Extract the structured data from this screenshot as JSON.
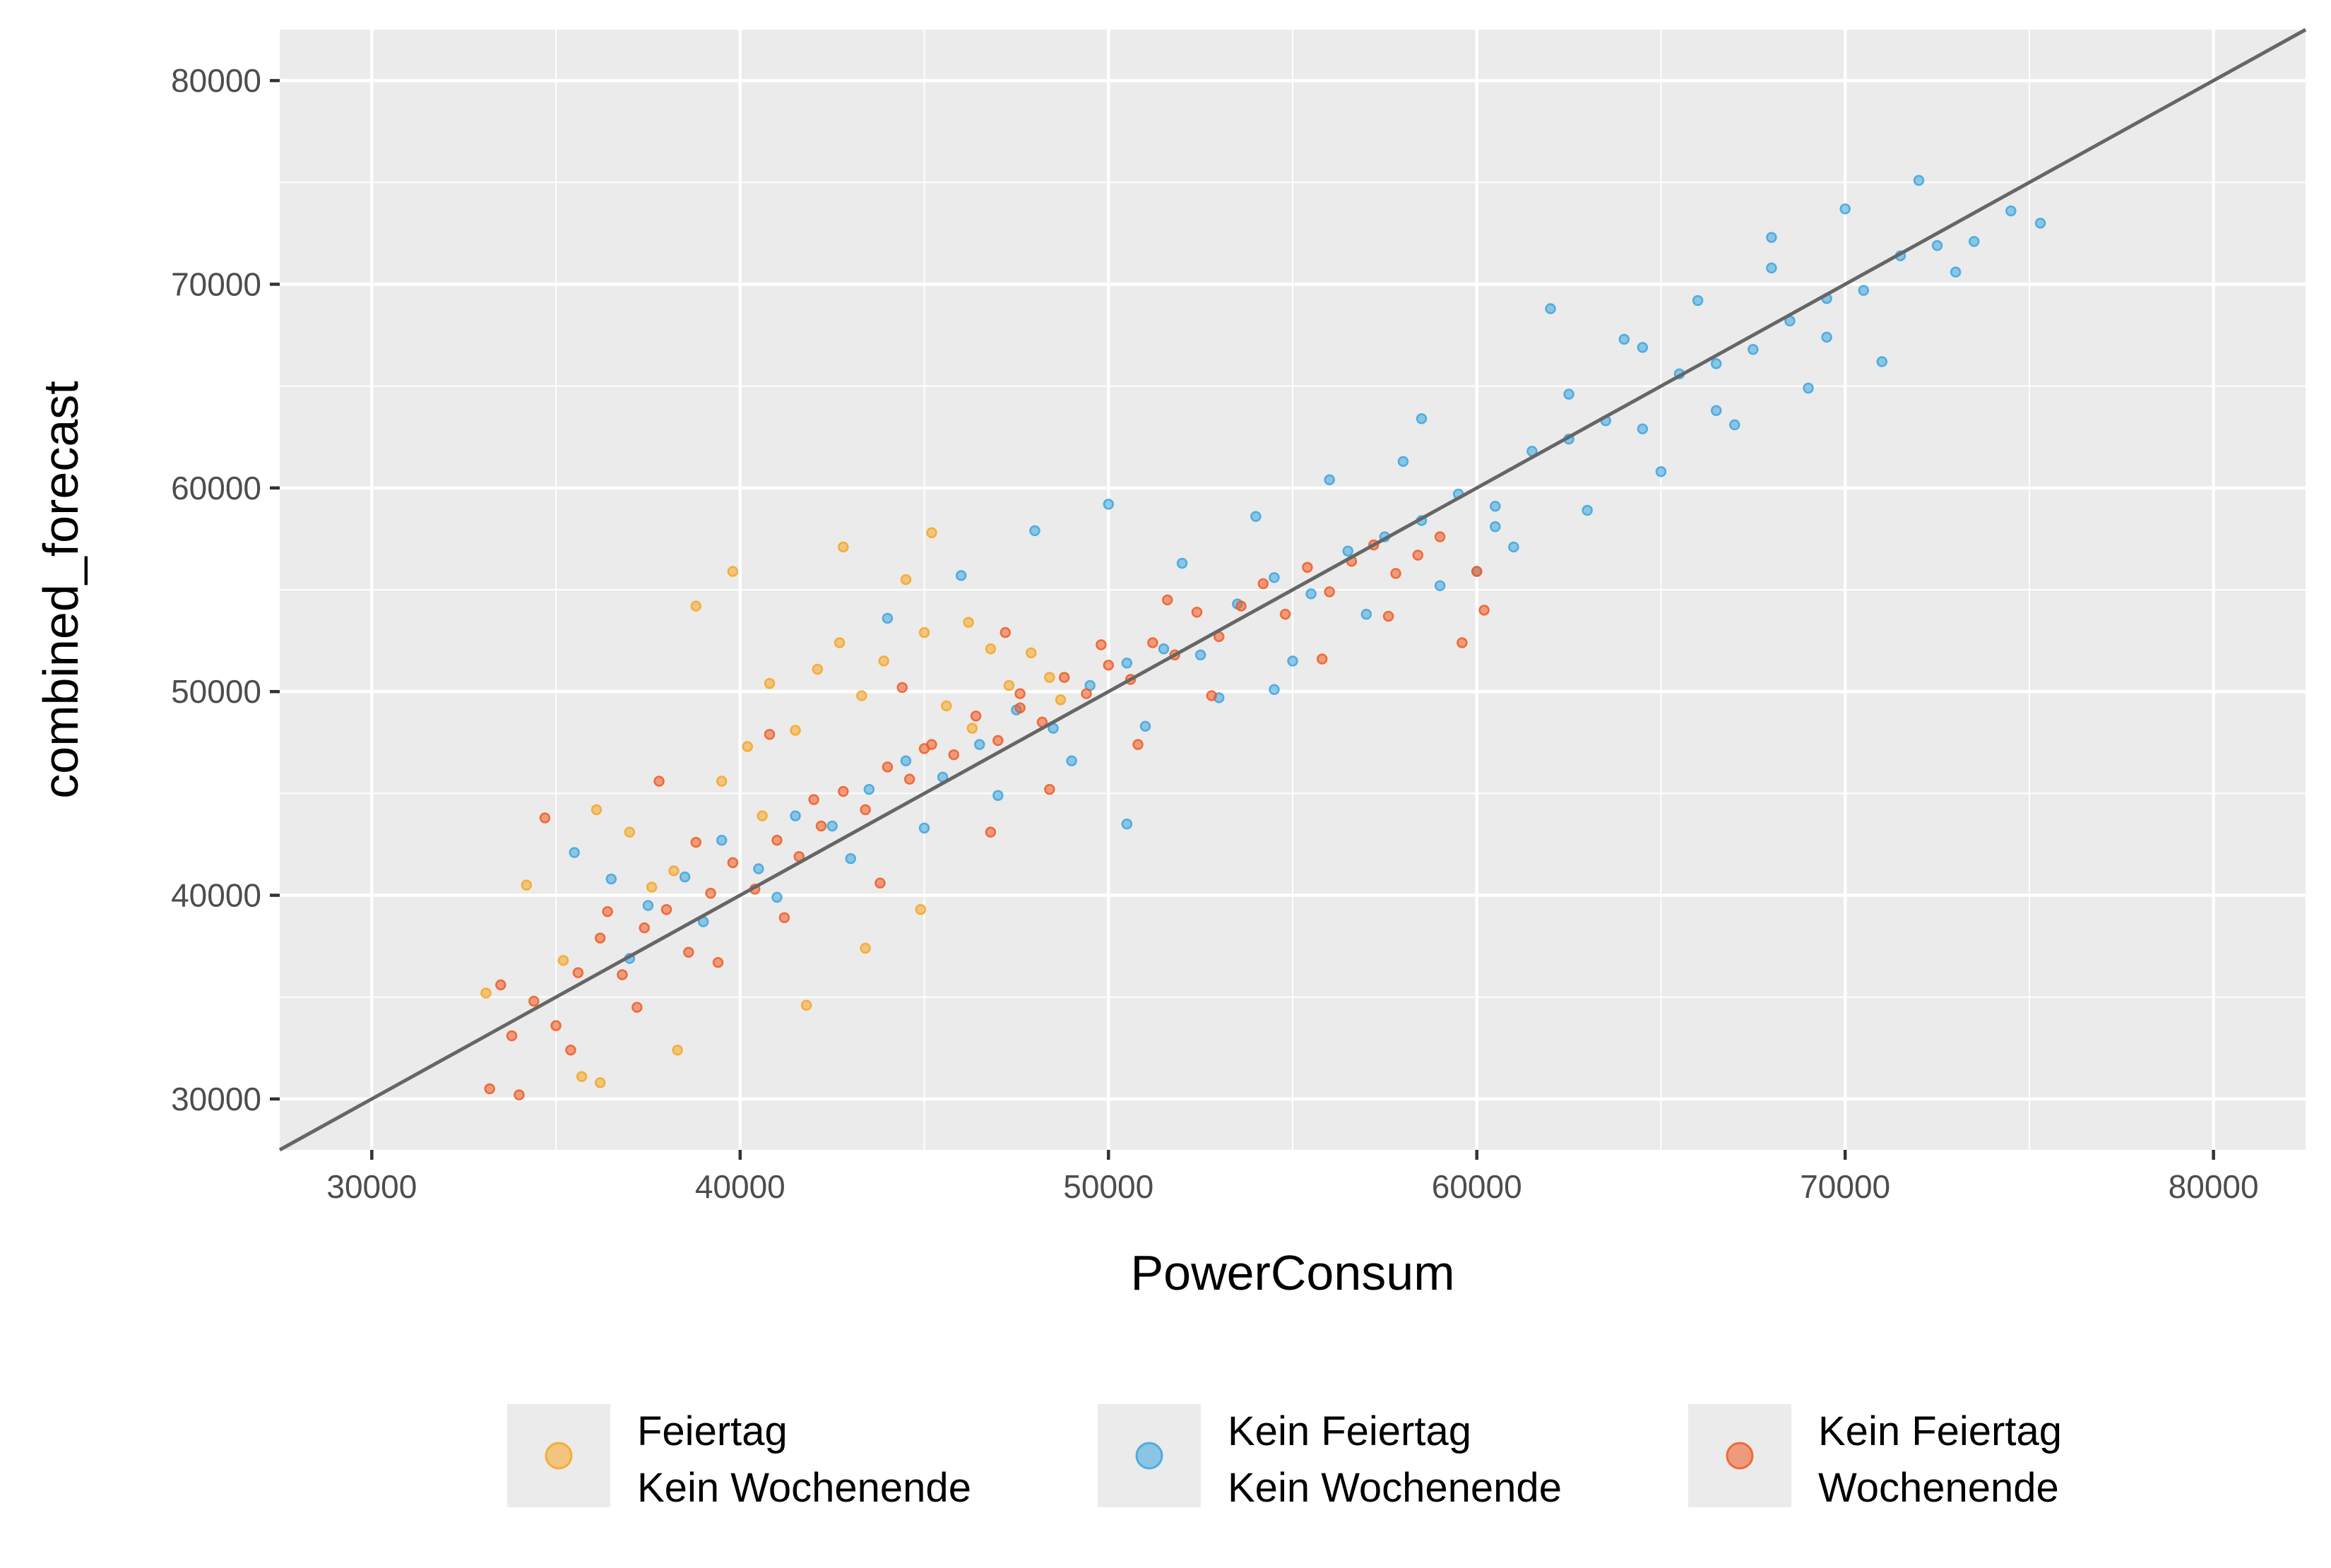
{
  "chart_data": {
    "type": "scatter",
    "title": "",
    "xlabel": "PowerConsum",
    "ylabel": "combined_forecast",
    "xlim": [
      27500,
      82500
    ],
    "ylim": [
      27500,
      82500
    ],
    "x_ticks": [
      30000,
      40000,
      50000,
      60000,
      70000,
      80000
    ],
    "y_ticks": [
      30000,
      40000,
      50000,
      60000,
      70000,
      80000
    ],
    "grid": true,
    "reference_line": {
      "slope": 1,
      "intercept": 0,
      "color": "#666666"
    },
    "legend_position": "bottom",
    "series": [
      {
        "name": "Feiertag\nKein Wochenende",
        "color": "#F5A623",
        "x": [
          33100,
          34200,
          35200,
          36100,
          37000,
          37600,
          38200,
          38800,
          39500,
          40200,
          40800,
          41500,
          42100,
          42700,
          43300,
          43900,
          44500,
          45000,
          45600,
          46200,
          46800,
          47300,
          47900,
          48400,
          38300,
          39800,
          42800,
          45200,
          43400,
          36200,
          41800,
          44900,
          35700,
          46300,
          48700,
          40600
        ],
        "y": [
          35200,
          40500,
          36800,
          44200,
          43100,
          40400,
          41200,
          54200,
          45600,
          47300,
          50400,
          48100,
          51100,
          52400,
          49800,
          51500,
          55500,
          52900,
          49300,
          53400,
          52100,
          50300,
          51900,
          50700,
          32400,
          55900,
          57100,
          57800,
          37400,
          30800,
          34600,
          39300,
          31100,
          48200,
          49600,
          43900
        ]
      },
      {
        "name": "Kein Feiertag\nKein Wochenende",
        "color": "#3DA5DF",
        "x": [
          35500,
          36500,
          37500,
          38500,
          39500,
          40500,
          41500,
          42500,
          43500,
          44500,
          45500,
          46500,
          47500,
          48500,
          49500,
          50500,
          51500,
          52500,
          53500,
          54500,
          55500,
          56500,
          57500,
          58500,
          59500,
          60500,
          61500,
          62500,
          63500,
          64500,
          65500,
          66500,
          67500,
          68500,
          69500,
          70500,
          71500,
          72500,
          73500,
          74500,
          75300,
          71000,
          69000,
          67000,
          65000,
          63000,
          61000,
          59000,
          57000,
          55000,
          53000,
          51000,
          49000,
          47000,
          45000,
          43000,
          41000,
          39000,
          37000,
          62000,
          64000,
          66000,
          68000,
          70000,
          72000,
          58000,
          56000,
          54000,
          52000,
          50000,
          48000,
          46000,
          44000,
          60000,
          62500,
          66500,
          69500,
          73000,
          50500,
          54500,
          60500,
          64500,
          68000,
          58500
        ],
        "y": [
          42100,
          40800,
          39500,
          40900,
          42700,
          41300,
          43900,
          43400,
          45200,
          46600,
          45800,
          47400,
          49100,
          48200,
          50300,
          51400,
          52100,
          51800,
          54300,
          55600,
          54800,
          56900,
          57600,
          58400,
          59700,
          59100,
          61800,
          62400,
          63300,
          62900,
          65600,
          66100,
          66800,
          68200,
          69300,
          69700,
          71400,
          71900,
          72100,
          73600,
          73000,
          66200,
          64900,
          63100,
          60800,
          58900,
          57100,
          55200,
          53800,
          51500,
          49700,
          48300,
          46600,
          44900,
          43300,
          41800,
          39900,
          38700,
          36900,
          68800,
          67300,
          69200,
          70800,
          73700,
          75100,
          61300,
          60400,
          58600,
          56300,
          59200,
          57900,
          55700,
          53600,
          55900,
          64600,
          63800,
          67400,
          70600,
          43500,
          50100,
          58100,
          66900,
          72300,
          63400
        ]
      },
      {
        "name": "Kein Feiertag\nWochenende",
        "color": "#F15A22",
        "x": [
          33200,
          33800,
          34400,
          35000,
          35600,
          36200,
          36800,
          37400,
          38000,
          38600,
          39200,
          39800,
          40400,
          41000,
          41600,
          42200,
          42800,
          43400,
          44000,
          44600,
          45200,
          45800,
          46400,
          47000,
          47600,
          48200,
          48800,
          49400,
          50000,
          50600,
          51200,
          51800,
          52400,
          53000,
          53600,
          54200,
          54800,
          55400,
          56000,
          56600,
          57200,
          57800,
          58400,
          59000,
          59600,
          60200,
          34000,
          35400,
          37200,
          39400,
          41200,
          43800,
          46800,
          48400,
          50800,
          52800,
          55800,
          57600,
          60000,
          33500,
          36400,
          38800,
          42000,
          45000,
          47600,
          49800,
          51600,
          34700,
          37800,
          40800,
          44400,
          47200
        ],
        "y": [
          30500,
          33100,
          34800,
          33600,
          36200,
          37900,
          36100,
          38400,
          39300,
          37200,
          40100,
          41600,
          40300,
          42700,
          41900,
          43400,
          45100,
          44200,
          46300,
          45700,
          47400,
          46900,
          48800,
          47600,
          49200,
          48500,
          50700,
          49900,
          51300,
          50600,
          52400,
          51800,
          53900,
          52700,
          54200,
          55300,
          53800,
          56100,
          54900,
          56400,
          57200,
          55800,
          56700,
          57600,
          52400,
          54000,
          30200,
          32400,
          34500,
          36700,
          38900,
          40600,
          43100,
          45200,
          47400,
          49800,
          51600,
          53700,
          55900,
          35600,
          39200,
          42600,
          44700,
          47200,
          49900,
          52300,
          54500,
          43800,
          45600,
          47900,
          50200,
          52900
        ]
      }
    ]
  }
}
